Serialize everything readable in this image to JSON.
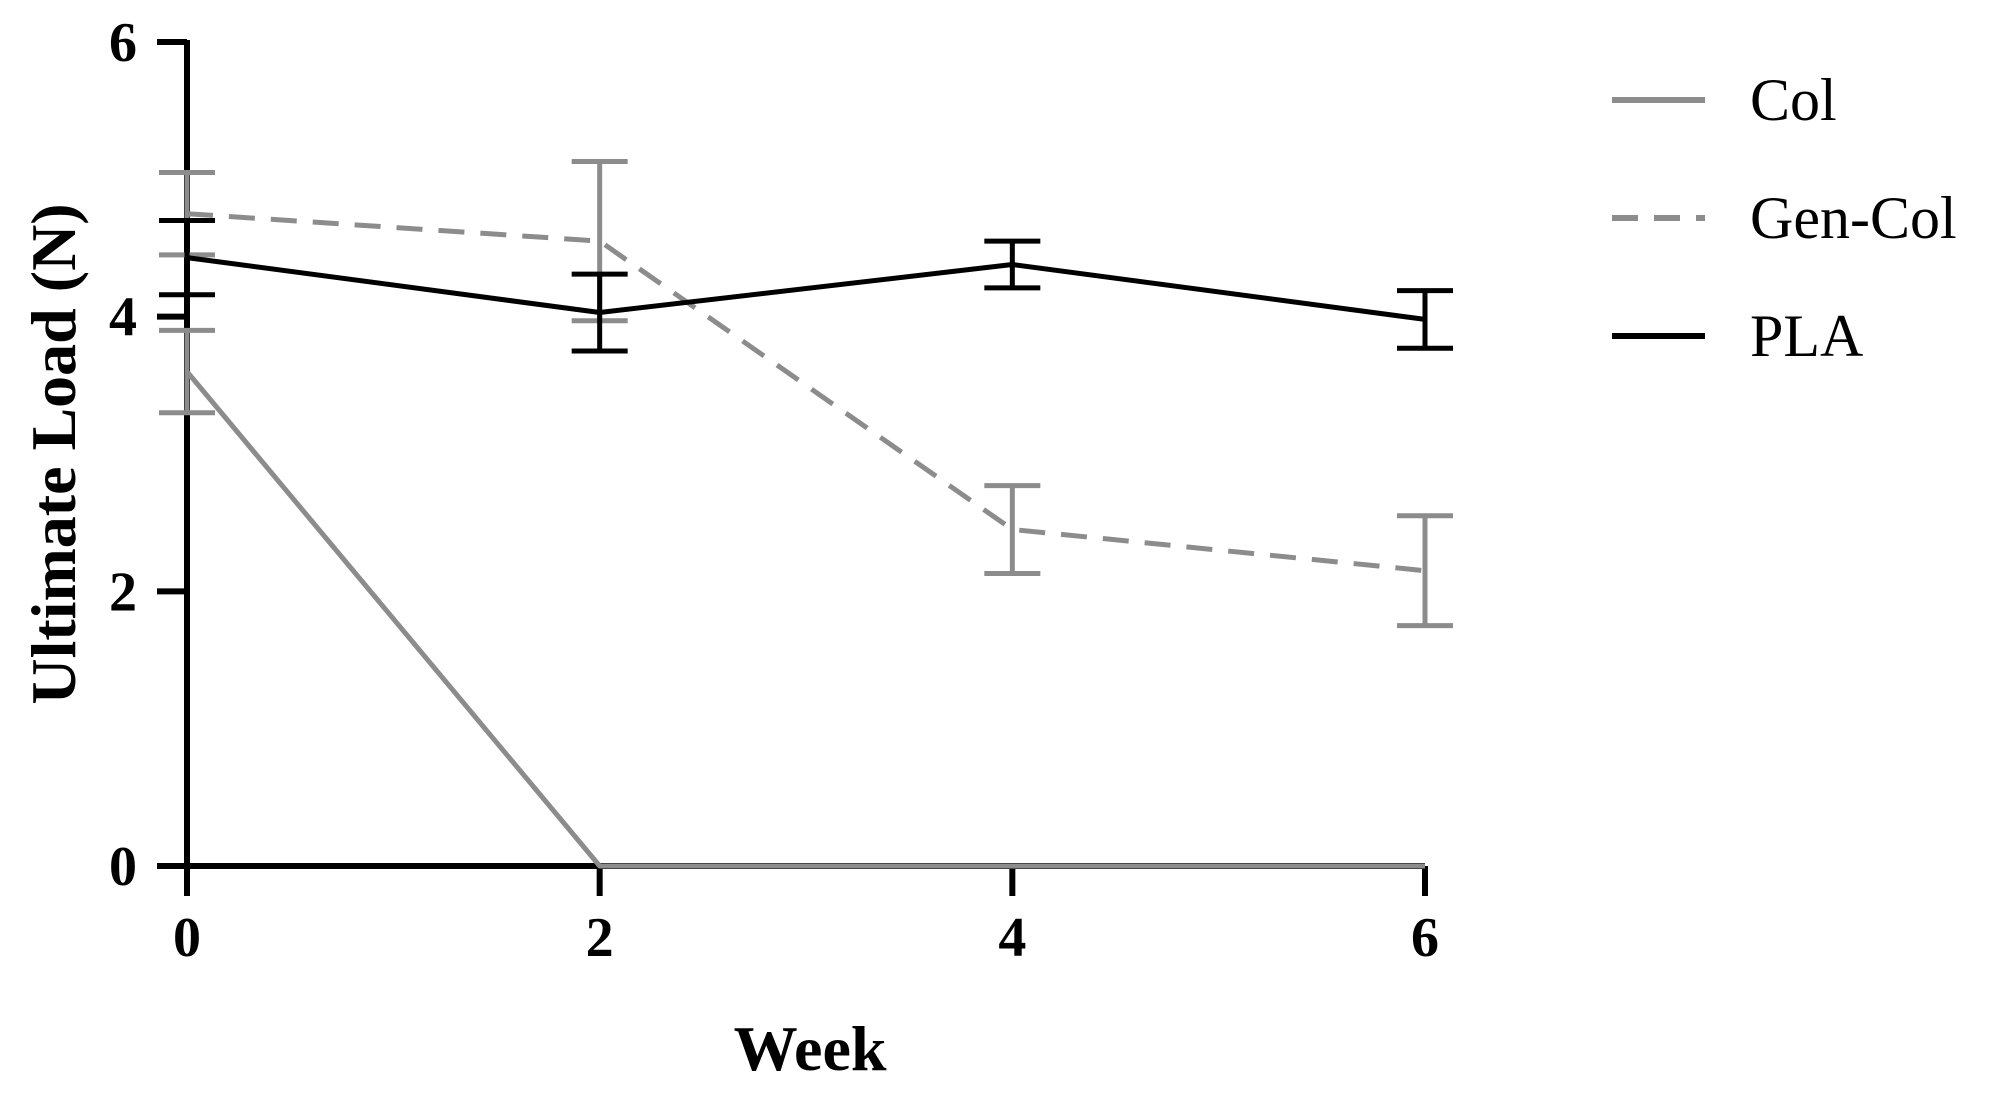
{
  "chart_data": {
    "type": "line",
    "xlabel": "Week",
    "ylabel": "Ultimate Load (N)",
    "x": [
      0,
      2,
      4,
      6
    ],
    "xlim": [
      0,
      6
    ],
    "ylim": [
      0,
      6
    ],
    "x_ticks": [
      "0",
      "2",
      "4",
      "6"
    ],
    "y_ticks": [
      "0",
      "2",
      "4",
      "6"
    ],
    "grid": false,
    "legend_position": "right",
    "series": [
      {
        "name": "Col",
        "values": [
          3.6,
          0,
          0,
          0
        ],
        "errors": [
          0.3,
          null,
          null,
          null
        ],
        "color": "#8c8c8c",
        "style": "solid"
      },
      {
        "name": "Gen-Col",
        "values": [
          4.75,
          4.55,
          2.45,
          2.15
        ],
        "errors": [
          0.3,
          0.58,
          0.32,
          0.4
        ],
        "color": "#8c8c8c",
        "style": "dashed"
      },
      {
        "name": "PLA",
        "values": [
          4.43,
          4.03,
          4.38,
          3.98
        ],
        "errors": [
          0.27,
          0.28,
          0.17,
          0.21
        ],
        "color": "#000000",
        "style": "solid"
      }
    ]
  }
}
